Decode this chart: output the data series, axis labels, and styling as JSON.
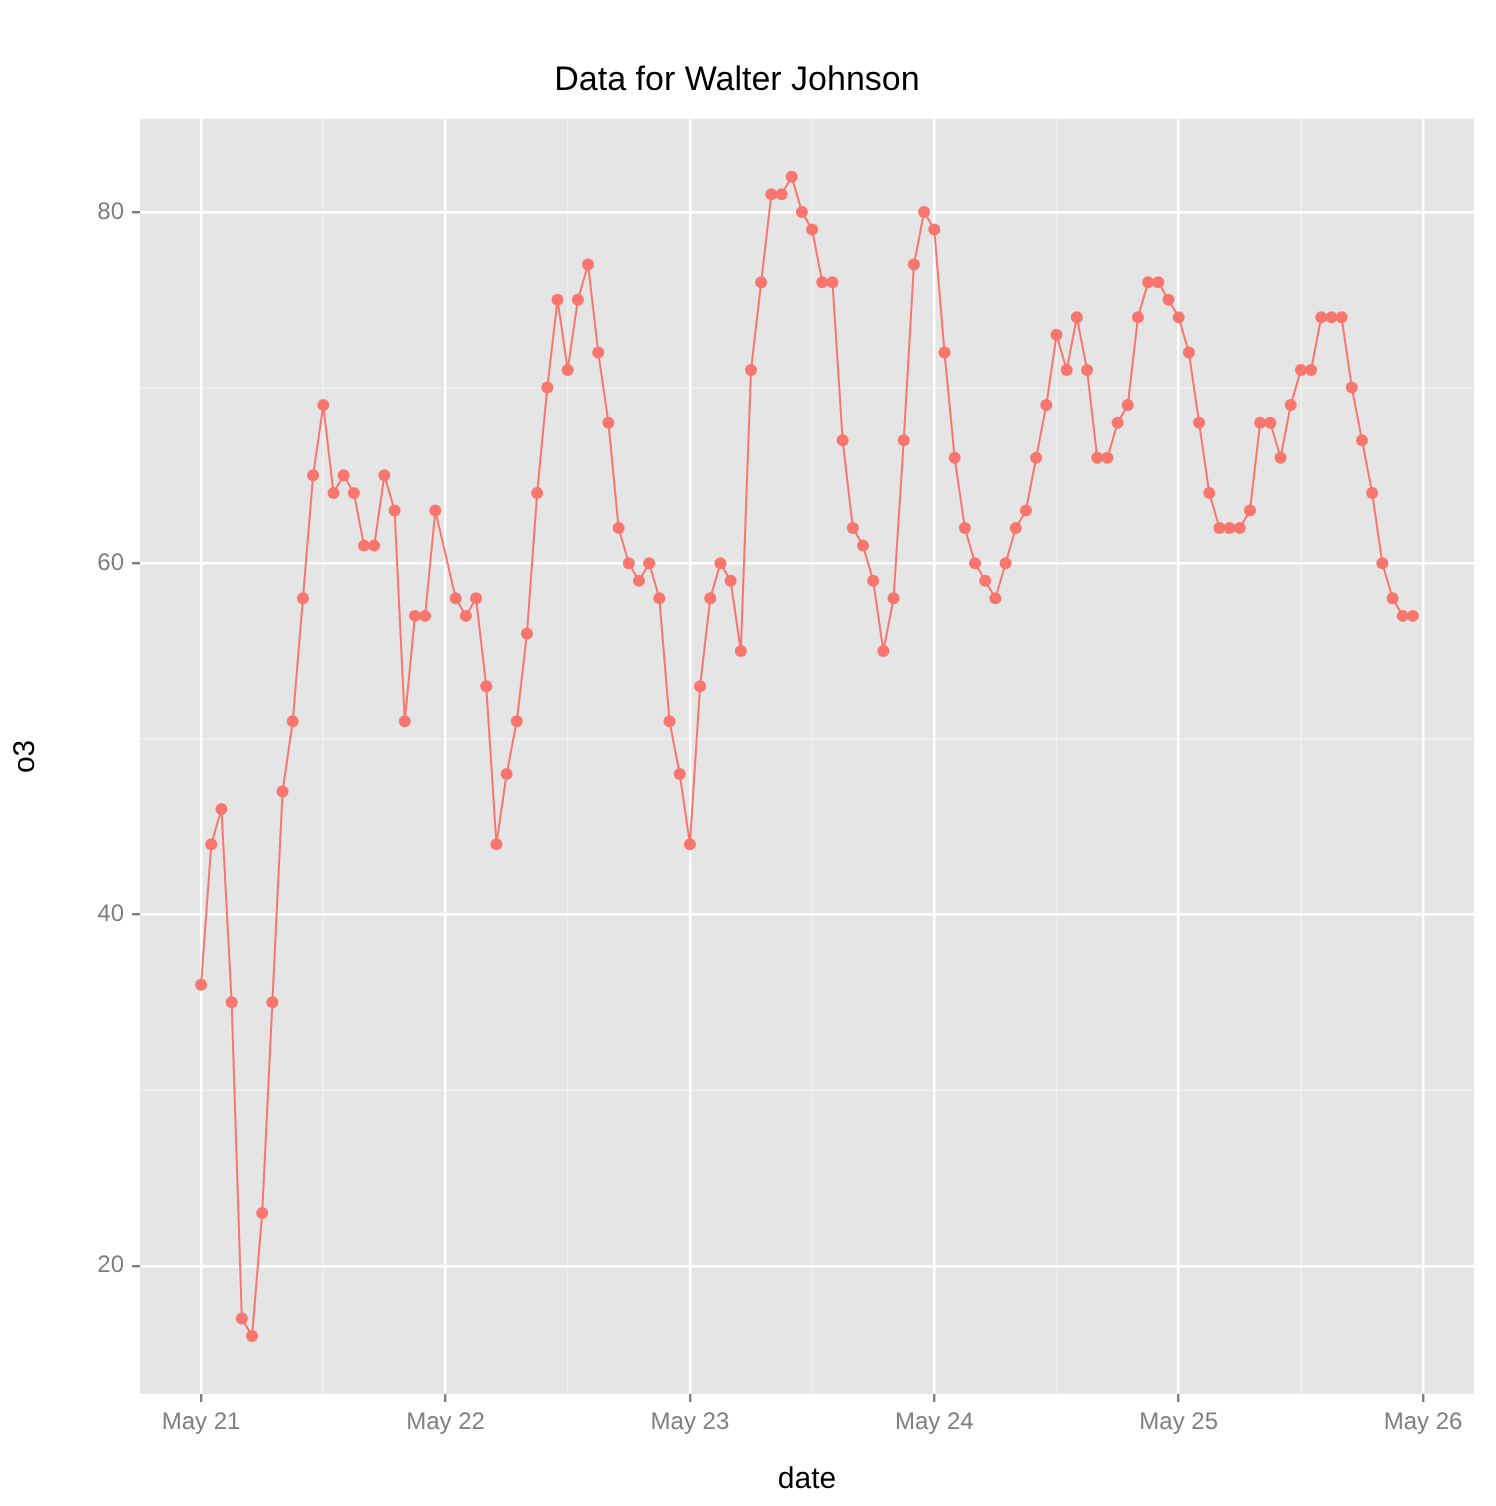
{
  "chart_data": {
    "type": "line",
    "title": "Data for Walter Johnson",
    "xlabel": "date",
    "ylabel": "o3",
    "x": [
      "--05-21T00:00",
      "--05-21T01:00",
      "--05-21T02:00",
      "--05-21T03:00",
      "--05-21T04:00",
      "--05-21T05:00",
      "--05-21T06:00",
      "--05-21T07:00",
      "--05-21T08:00",
      "--05-21T09:00",
      "--05-21T10:00",
      "--05-21T11:00",
      "--05-21T12:00",
      "--05-21T13:00",
      "--05-21T14:00",
      "--05-21T15:00",
      "--05-21T16:00",
      "--05-21T17:00",
      "--05-21T18:00",
      "--05-21T19:00",
      "--05-21T20:00",
      "--05-21T21:00",
      "--05-21T22:00",
      "--05-21T23:00",
      "--05-22T01:00",
      "--05-22T02:00",
      "--05-22T03:00",
      "--05-22T04:00",
      "--05-22T05:00",
      "--05-22T06:00",
      "--05-22T07:00",
      "--05-22T08:00",
      "--05-22T09:00",
      "--05-22T10:00",
      "--05-22T11:00",
      "--05-22T12:00",
      "--05-22T13:00",
      "--05-22T14:00",
      "--05-22T15:00",
      "--05-22T16:00",
      "--05-22T17:00",
      "--05-22T18:00",
      "--05-22T19:00",
      "--05-22T20:00",
      "--05-22T21:00",
      "--05-22T22:00",
      "--05-22T23:00",
      "--05-23T00:00",
      "--05-23T01:00",
      "--05-23T02:00",
      "--05-23T03:00",
      "--05-23T04:00",
      "--05-23T05:00",
      "--05-23T06:00",
      "--05-23T07:00",
      "--05-23T08:00",
      "--05-23T09:00",
      "--05-23T10:00",
      "--05-23T11:00",
      "--05-23T12:00",
      "--05-23T13:00",
      "--05-23T14:00",
      "--05-23T15:00",
      "--05-23T16:00",
      "--05-23T17:00",
      "--05-23T18:00",
      "--05-23T19:00",
      "--05-23T20:00",
      "--05-23T21:00",
      "--05-23T22:00",
      "--05-23T23:00",
      "--05-24T00:00",
      "--05-24T01:00",
      "--05-24T02:00",
      "--05-24T03:00",
      "--05-24T04:00",
      "--05-24T05:00",
      "--05-24T06:00",
      "--05-24T07:00",
      "--05-24T08:00",
      "--05-24T09:00",
      "--05-24T10:00",
      "--05-24T11:00",
      "--05-24T12:00",
      "--05-24T13:00",
      "--05-24T14:00",
      "--05-24T15:00",
      "--05-24T16:00",
      "--05-24T17:00",
      "--05-24T18:00",
      "--05-24T19:00",
      "--05-24T20:00",
      "--05-24T21:00",
      "--05-24T22:00",
      "--05-24T23:00",
      "--05-25T00:00",
      "--05-25T01:00",
      "--05-25T02:00",
      "--05-25T03:00",
      "--05-25T04:00",
      "--05-25T05:00",
      "--05-25T06:00",
      "--05-25T07:00",
      "--05-25T08:00",
      "--05-25T09:00",
      "--05-25T10:00",
      "--05-25T11:00",
      "--05-25T12:00",
      "--05-25T13:00",
      "--05-25T14:00",
      "--05-25T15:00",
      "--05-25T16:00",
      "--05-25T17:00",
      "--05-25T18:00",
      "--05-25T19:00",
      "--05-25T20:00",
      "--05-25T21:00",
      "--05-25T22:00",
      "--05-25T23:00"
    ],
    "series": [
      {
        "color": "#f8766d",
        "values": [
          36,
          44,
          46,
          35,
          17,
          16,
          23,
          35,
          47,
          51,
          58,
          65,
          69,
          64,
          65,
          64,
          61,
          61,
          65,
          63,
          51,
          57,
          57,
          63,
          58,
          57,
          58,
          53,
          44,
          48,
          51,
          56,
          64,
          70,
          75,
          71,
          75,
          77,
          72,
          68,
          62,
          60,
          59,
          60,
          58,
          51,
          48,
          44,
          53,
          58,
          60,
          59,
          55,
          71,
          76,
          81,
          81,
          82,
          80,
          79,
          76,
          76,
          67,
          62,
          61,
          59,
          55,
          58,
          67,
          77,
          80,
          79,
          72,
          66,
          62,
          60,
          59,
          58,
          60,
          62,
          63,
          66,
          69,
          73,
          71,
          74,
          71,
          66,
          66,
          68,
          69,
          74,
          76,
          76,
          75,
          74,
          72,
          68,
          64,
          62,
          62,
          62,
          63,
          68,
          68,
          66,
          69,
          71,
          71,
          74,
          74,
          74,
          70,
          67,
          64,
          60,
          58,
          57,
          57
        ]
      }
    ],
    "xlim": [
      "--05-20T18:00",
      "--05-26T05:00"
    ],
    "xticks": [
      {
        "value": "--05-21",
        "label": "May 21"
      },
      {
        "value": "--05-22",
        "label": "May 22"
      },
      {
        "value": "--05-23",
        "label": "May 23"
      },
      {
        "value": "--05-24",
        "label": "May 24"
      },
      {
        "value": "--05-25",
        "label": "May 25"
      },
      {
        "value": "--05-26",
        "label": "May 26"
      }
    ],
    "ylim": [
      12.7,
      85.3
    ],
    "yticks": [
      20,
      40,
      60,
      80
    ],
    "grid": true,
    "legend": false,
    "marker": "circle",
    "line_style": "solid"
  }
}
